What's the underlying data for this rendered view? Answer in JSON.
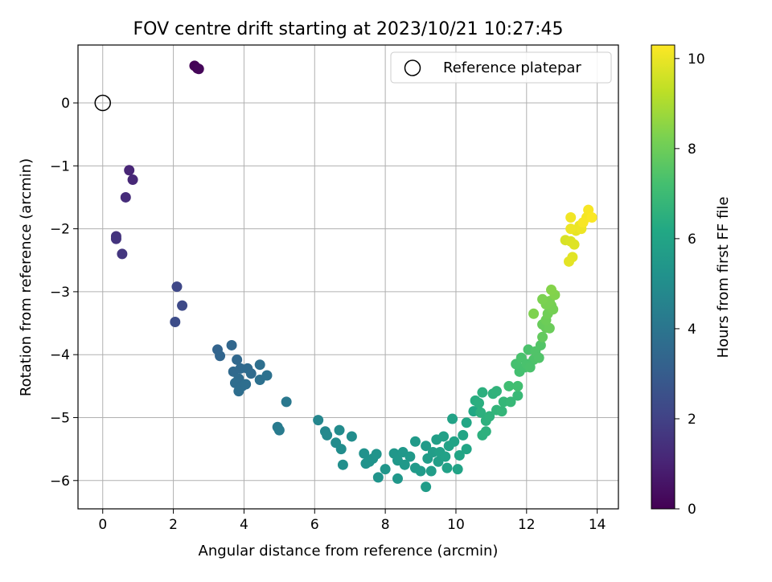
{
  "chart_data": {
    "type": "scatter",
    "title": "FOV centre drift starting at 2023/10/21 10:27:45",
    "xlabel": "Angular distance from reference (arcmin)",
    "ylabel": "Rotation from reference (arcmin)",
    "xlim": [
      -0.7,
      14.6
    ],
    "ylim": [
      -6.45,
      0.92
    ],
    "xticks": [
      0,
      2,
      4,
      6,
      8,
      10,
      12,
      14
    ],
    "yticks": [
      0,
      -1,
      -2,
      -3,
      -4,
      -5,
      -6
    ],
    "xtick_labels": [
      "0",
      "2",
      "4",
      "6",
      "8",
      "10",
      "12",
      "14"
    ],
    "ytick_labels": [
      "0",
      "−1",
      "−2",
      "−3",
      "−4",
      "−5",
      "−6"
    ],
    "grid": true,
    "legend": {
      "position": "top-right",
      "entries": [
        "Reference platepar"
      ]
    },
    "colorbar": {
      "label": "Hours from first FF file",
      "range": [
        0,
        10.3
      ],
      "ticks": [
        0,
        2,
        4,
        6,
        8,
        10
      ],
      "tick_labels": [
        "0",
        "2",
        "4",
        "6",
        "8",
        "10"
      ],
      "colormap": "viridis"
    },
    "reference_point": {
      "name": "Reference platepar",
      "x": 0,
      "y": 0
    },
    "series": [
      {
        "name": "FOV centre drift",
        "points": [
          [
            2.6,
            0.59,
            0.05
          ],
          [
            2.68,
            0.55,
            0.1
          ],
          [
            2.72,
            0.54,
            0.15
          ],
          [
            0.75,
            -1.07,
            1.1
          ],
          [
            0.85,
            -1.22,
            1.15
          ],
          [
            0.65,
            -1.5,
            1.3
          ],
          [
            0.38,
            -2.12,
            1.5
          ],
          [
            0.38,
            -2.16,
            1.55
          ],
          [
            0.55,
            -2.4,
            1.6
          ],
          [
            2.1,
            -2.92,
            2.2
          ],
          [
            2.25,
            -3.22,
            2.3
          ],
          [
            2.05,
            -3.48,
            2.4
          ],
          [
            3.25,
            -3.92,
            3.3
          ],
          [
            3.32,
            -4.02,
            3.35
          ],
          [
            3.65,
            -3.85,
            3.4
          ],
          [
            3.8,
            -4.08,
            3.45
          ],
          [
            3.7,
            -4.27,
            3.5
          ],
          [
            3.9,
            -4.22,
            3.5
          ],
          [
            4.1,
            -4.22,
            3.55
          ],
          [
            4.2,
            -4.3,
            3.6
          ],
          [
            3.85,
            -4.38,
            3.6
          ],
          [
            3.75,
            -4.45,
            3.65
          ],
          [
            3.95,
            -4.5,
            3.65
          ],
          [
            3.85,
            -4.58,
            3.7
          ],
          [
            4.05,
            -4.47,
            3.7
          ],
          [
            4.45,
            -4.16,
            3.75
          ],
          [
            4.45,
            -4.4,
            3.8
          ],
          [
            4.65,
            -4.33,
            3.85
          ],
          [
            5.2,
            -4.75,
            4.1
          ],
          [
            4.95,
            -5.15,
            4.2
          ],
          [
            5.0,
            -5.2,
            4.25
          ],
          [
            6.1,
            -5.04,
            4.7
          ],
          [
            6.3,
            -5.22,
            4.75
          ],
          [
            6.35,
            -5.28,
            4.8
          ],
          [
            6.7,
            -5.2,
            4.9
          ],
          [
            6.6,
            -5.4,
            4.95
          ],
          [
            6.75,
            -5.5,
            5.0
          ],
          [
            7.05,
            -5.3,
            5.0
          ],
          [
            6.8,
            -5.75,
            5.05
          ],
          [
            7.4,
            -5.57,
            5.2
          ],
          [
            7.45,
            -5.73,
            5.2
          ],
          [
            7.55,
            -5.7,
            5.25
          ],
          [
            7.65,
            -5.65,
            5.25
          ],
          [
            7.75,
            -5.58,
            5.3
          ],
          [
            7.8,
            -5.95,
            5.3
          ],
          [
            8.0,
            -5.82,
            5.35
          ],
          [
            8.25,
            -5.57,
            5.4
          ],
          [
            8.35,
            -5.97,
            5.4
          ],
          [
            8.35,
            -5.68,
            5.45
          ],
          [
            8.5,
            -5.55,
            5.45
          ],
          [
            8.55,
            -5.75,
            5.5
          ],
          [
            8.7,
            -5.62,
            5.5
          ],
          [
            8.85,
            -5.38,
            5.55
          ],
          [
            8.85,
            -5.8,
            5.55
          ],
          [
            9.0,
            -5.85,
            5.6
          ],
          [
            9.15,
            -5.45,
            5.6
          ],
          [
            9.2,
            -5.65,
            5.65
          ],
          [
            9.15,
            -6.1,
            5.65
          ],
          [
            9.3,
            -5.85,
            5.7
          ],
          [
            9.35,
            -5.55,
            5.7
          ],
          [
            9.45,
            -5.35,
            5.75
          ],
          [
            9.5,
            -5.7,
            5.75
          ],
          [
            9.55,
            -5.55,
            5.8
          ],
          [
            9.65,
            -5.3,
            5.8
          ],
          [
            9.7,
            -5.62,
            5.85
          ],
          [
            9.75,
            -5.8,
            5.85
          ],
          [
            9.8,
            -5.45,
            5.9
          ],
          [
            9.9,
            -5.02,
            5.9
          ],
          [
            9.95,
            -5.38,
            5.95
          ],
          [
            10.05,
            -5.82,
            5.95
          ],
          [
            10.1,
            -5.6,
            6.0
          ],
          [
            10.2,
            -5.28,
            6.0
          ],
          [
            10.3,
            -5.5,
            6.05
          ],
          [
            10.3,
            -5.08,
            6.1
          ],
          [
            10.5,
            -4.9,
            6.15
          ],
          [
            10.55,
            -4.73,
            6.4
          ],
          [
            10.65,
            -4.77,
            6.45
          ],
          [
            10.7,
            -4.92,
            6.5
          ],
          [
            10.75,
            -4.6,
            6.5
          ],
          [
            10.85,
            -5.05,
            6.55
          ],
          [
            10.95,
            -4.98,
            6.6
          ],
          [
            11.05,
            -4.62,
            6.6
          ],
          [
            11.15,
            -4.58,
            6.65
          ],
          [
            10.75,
            -5.28,
            6.5
          ],
          [
            10.85,
            -5.22,
            6.55
          ],
          [
            11.15,
            -4.88,
            6.7
          ],
          [
            11.3,
            -4.9,
            6.75
          ],
          [
            11.35,
            -4.75,
            6.8
          ],
          [
            11.55,
            -4.75,
            6.85
          ],
          [
            11.75,
            -4.65,
            6.9
          ],
          [
            11.5,
            -4.5,
            7.1
          ],
          [
            11.75,
            -4.5,
            7.15
          ],
          [
            11.8,
            -4.27,
            7.2
          ],
          [
            11.95,
            -4.2,
            7.25
          ],
          [
            11.7,
            -4.15,
            7.25
          ],
          [
            11.85,
            -4.05,
            7.3
          ],
          [
            12.05,
            -3.92,
            7.35
          ],
          [
            12.2,
            -4.08,
            7.4
          ],
          [
            12.25,
            -3.95,
            7.45
          ],
          [
            12.4,
            -3.85,
            7.5
          ],
          [
            12.0,
            -4.15,
            7.3
          ],
          [
            12.1,
            -4.2,
            7.35
          ],
          [
            12.35,
            -4.05,
            7.45
          ],
          [
            12.45,
            -3.72,
            7.8
          ],
          [
            12.55,
            -3.57,
            7.85
          ],
          [
            12.45,
            -3.52,
            7.9
          ],
          [
            12.65,
            -3.58,
            7.95
          ],
          [
            12.55,
            -3.45,
            8.0
          ],
          [
            12.6,
            -3.35,
            8.05
          ],
          [
            12.7,
            -3.22,
            8.1
          ],
          [
            12.75,
            -3.28,
            8.15
          ],
          [
            12.65,
            -3.15,
            8.2
          ],
          [
            12.55,
            -3.2,
            8.2
          ],
          [
            12.45,
            -3.12,
            8.25
          ],
          [
            12.2,
            -3.35,
            8.3
          ],
          [
            12.8,
            -3.05,
            8.35
          ],
          [
            12.7,
            -2.97,
            8.4
          ],
          [
            13.1,
            -2.18,
            9.7
          ],
          [
            13.25,
            -2.2,
            9.75
          ],
          [
            13.35,
            -2.25,
            9.8
          ],
          [
            13.3,
            -2.45,
            9.85
          ],
          [
            13.2,
            -2.52,
            9.9
          ],
          [
            13.4,
            -2.03,
            9.95
          ],
          [
            13.5,
            -1.95,
            10.0
          ],
          [
            13.55,
            -2.0,
            10.05
          ],
          [
            13.25,
            -2.0,
            10.05
          ],
          [
            13.25,
            -1.82,
            10.1
          ],
          [
            13.7,
            -1.82,
            10.15
          ],
          [
            13.75,
            -1.7,
            10.2
          ],
          [
            13.85,
            -1.82,
            10.25
          ],
          [
            13.6,
            -1.9,
            10.2
          ]
        ]
      }
    ]
  }
}
